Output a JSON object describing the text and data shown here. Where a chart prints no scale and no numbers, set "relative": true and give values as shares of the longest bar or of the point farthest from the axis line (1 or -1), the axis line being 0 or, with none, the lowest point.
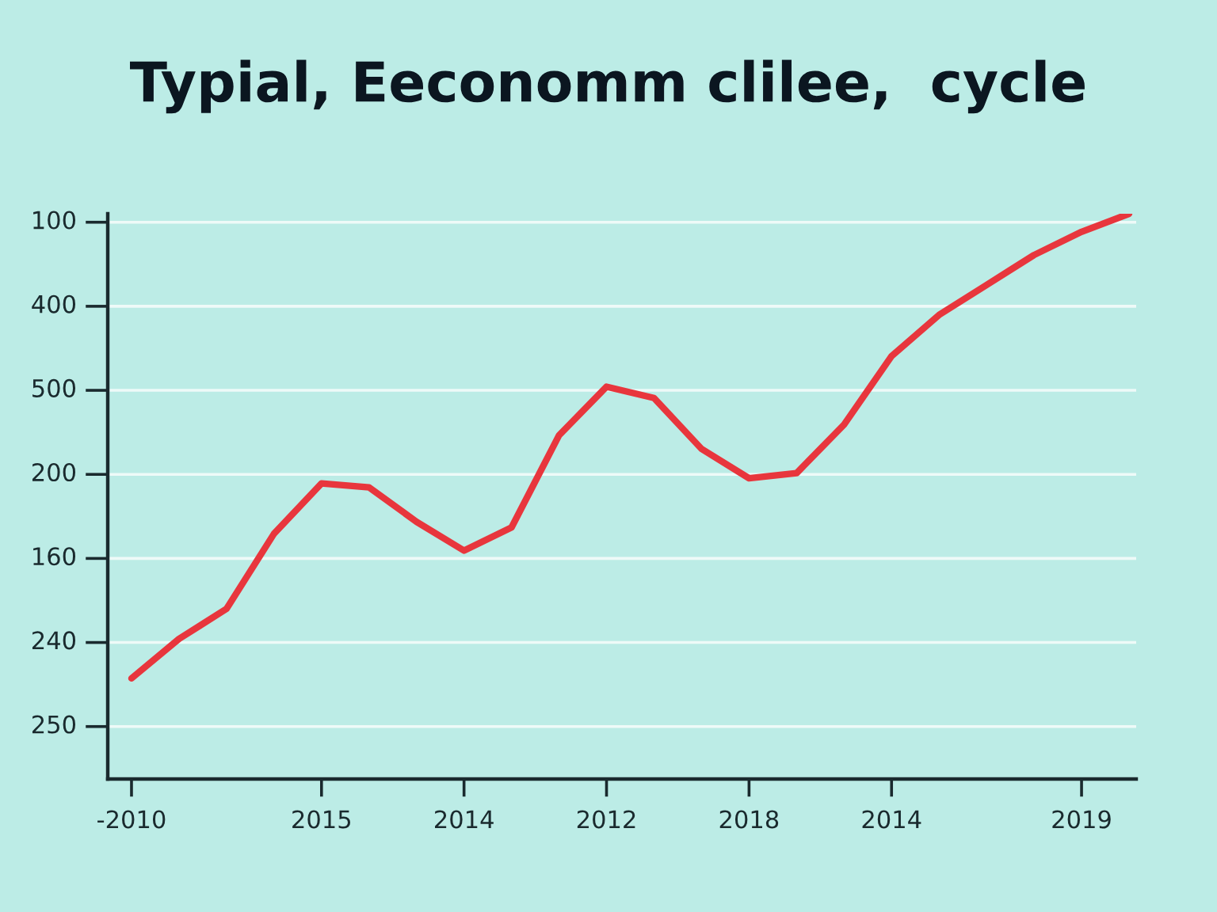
{
  "chart_data": {
    "type": "line",
    "title": "Typial, Eeconomm clilee,  cycle",
    "relative": true,
    "categories": [
      "-2010",
      null,
      null,
      null,
      "2015",
      null,
      null,
      "2014",
      null,
      null,
      "2012",
      null,
      null,
      "2018",
      null,
      null,
      "2014",
      null,
      null,
      null,
      "2019",
      null
    ],
    "series": [
      {
        "color": "#e8363d",
        "values": [
          0.178,
          0.248,
          0.301,
          0.434,
          0.523,
          0.516,
          0.455,
          0.404,
          0.445,
          0.608,
          0.694,
          0.674,
          0.584,
          0.532,
          0.541,
          0.627,
          0.748,
          0.821,
          0.874,
          0.927,
          0.968,
          1.0
        ]
      }
    ],
    "annotations": [
      "100",
      "400",
      "500",
      "200",
      "160",
      "240",
      "250"
    ],
    "grid": "y",
    "marker": "none",
    "line_style": "solid"
  }
}
